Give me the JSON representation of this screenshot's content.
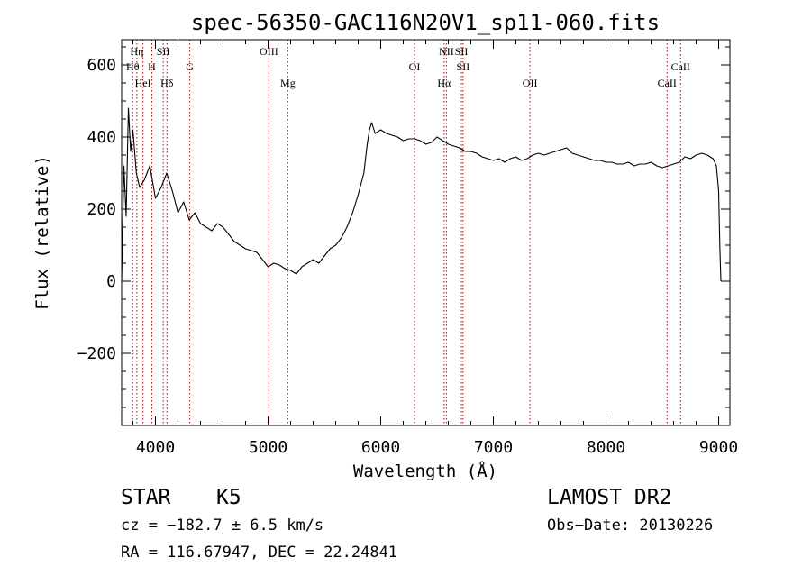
{
  "chart_data": {
    "type": "line",
    "title": "spec-56350-GAC116N20V1_sp11-060.fits",
    "xlabel": "Wavelength (Å)",
    "ylabel": "Flux (relative)",
    "xlim": [
      3700,
      9100
    ],
    "ylim": [
      -400,
      670
    ],
    "xticks": [
      4000,
      5000,
      6000,
      7000,
      8000,
      9000
    ],
    "yticks": [
      -200,
      0,
      200,
      400,
      600
    ],
    "grid": false,
    "legend": "none",
    "line_color": "#000000",
    "marker_color": "#a01010",
    "series": [
      {
        "x": [
          3700,
          3720,
          3740,
          3760,
          3780,
          3800,
          3830,
          3860,
          3900,
          3950,
          4000,
          4050,
          4100,
          4150,
          4200,
          4250,
          4300,
          4350,
          4400,
          4450,
          4500,
          4550,
          4600,
          4650,
          4700,
          4750,
          4800,
          4850,
          4900,
          4950,
          5000,
          5050,
          5100,
          5150,
          5200,
          5250,
          5300,
          5350,
          5400,
          5450,
          5500,
          5550,
          5600,
          5650,
          5700,
          5750,
          5800,
          5850,
          5880,
          5900,
          5920,
          5950,
          6000,
          6050,
          6100,
          6150,
          6200,
          6250,
          6300,
          6350,
          6400,
          6450,
          6500,
          6550,
          6600,
          6650,
          6700,
          6750,
          6800,
          6850,
          6900,
          6950,
          7000,
          7050,
          7100,
          7150,
          7200,
          7250,
          7300,
          7350,
          7400,
          7450,
          7500,
          7550,
          7600,
          7650,
          7700,
          7750,
          7800,
          7850,
          7900,
          7950,
          8000,
          8050,
          8100,
          8150,
          8200,
          8250,
          8300,
          8350,
          8400,
          8450,
          8500,
          8550,
          8600,
          8650,
          8700,
          8750,
          8800,
          8850,
          8900,
          8950,
          8980,
          9000,
          9010,
          9020
        ],
        "y": [
          0,
          320,
          180,
          480,
          360,
          420,
          300,
          260,
          280,
          320,
          230,
          260,
          300,
          250,
          190,
          220,
          170,
          190,
          160,
          150,
          140,
          160,
          150,
          130,
          110,
          100,
          90,
          85,
          80,
          60,
          40,
          50,
          45,
          35,
          30,
          20,
          40,
          50,
          60,
          50,
          70,
          90,
          100,
          120,
          150,
          190,
          240,
          300,
          380,
          420,
          440,
          410,
          420,
          410,
          405,
          400,
          390,
          395,
          395,
          390,
          380,
          385,
          400,
          390,
          380,
          375,
          370,
          360,
          360,
          355,
          345,
          340,
          335,
          340,
          330,
          340,
          345,
          335,
          340,
          350,
          355,
          350,
          355,
          360,
          365,
          370,
          355,
          350,
          345,
          340,
          335,
          335,
          330,
          330,
          325,
          325,
          330,
          320,
          325,
          325,
          330,
          320,
          315,
          320,
          325,
          330,
          345,
          340,
          350,
          355,
          350,
          340,
          320,
          250,
          100,
          0
        ]
      }
    ],
    "annotations": [
      {
        "label": "Hη",
        "x": 3835,
        "row": 1
      },
      {
        "label": "Hθ",
        "x": 3798,
        "row": 2
      },
      {
        "label": "H",
        "x": 3968,
        "row": 2
      },
      {
        "label": "SII",
        "x": 4069,
        "row": 1
      },
      {
        "label": "G",
        "x": 4305,
        "row": 2
      },
      {
        "label": "HeI",
        "x": 3889,
        "row": 3
      },
      {
        "label": "Hδ",
        "x": 4102,
        "row": 3
      },
      {
        "label": "OIII",
        "x": 5007,
        "row": 1
      },
      {
        "label": "Mg",
        "x": 5175,
        "row": 3
      },
      {
        "label": "OI",
        "x": 6300,
        "row": 2
      },
      {
        "label": "NII",
        "x": 6583,
        "row": 1
      },
      {
        "label": "SII",
        "x": 6716,
        "row": 1
      },
      {
        "label": "SII",
        "x": 6731,
        "row": 2
      },
      {
        "label": "Hα",
        "x": 6563,
        "row": 3
      },
      {
        "label": "OII",
        "x": 7325,
        "row": 3
      },
      {
        "label": "CaII",
        "x": 8542,
        "row": 3
      },
      {
        "label": "CaII",
        "x": 8662,
        "row": 2
      }
    ]
  },
  "info": {
    "class_label": "STAR",
    "subclass": "K5",
    "survey": "LAMOST DR2",
    "cz": "cz = −182.7 ± 6.5 km/s",
    "obs_date": "Obs−Date: 20130226",
    "coords": "RA = 116.67947, DEC =  22.24841"
  }
}
